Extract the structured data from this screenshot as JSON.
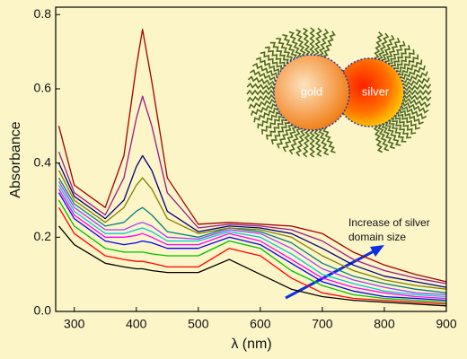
{
  "chart_data": {
    "type": "line",
    "xlabel": "λ (nm)",
    "ylabel": "Absorbance",
    "annotation": [
      "Increase of silver",
      "domain size"
    ],
    "inset_labels": [
      "gold",
      "silver"
    ],
    "xlim": [
      270,
      900
    ],
    "ylim": [
      0,
      0.82
    ],
    "xticks": [
      300,
      400,
      500,
      600,
      700,
      800,
      900
    ],
    "yticks": [
      {
        "value": 0,
        "label": "0.0"
      },
      0.2,
      0.4,
      0.6,
      0.8
    ],
    "x": [
      275,
      300,
      350,
      380,
      400,
      410,
      425,
      450,
      500,
      550,
      600,
      650,
      700,
      750,
      800,
      850,
      900
    ],
    "series": [
      {
        "color": "#000000",
        "values": [
          0.23,
          0.18,
          0.13,
          0.12,
          0.115,
          0.115,
          0.11,
          0.105,
          0.105,
          0.14,
          0.1,
          0.06,
          0.04,
          0.03,
          0.025,
          0.02,
          0.015
        ]
      },
      {
        "color": "#ff0000",
        "values": [
          0.28,
          0.21,
          0.15,
          0.14,
          0.135,
          0.135,
          0.13,
          0.12,
          0.12,
          0.17,
          0.15,
          0.09,
          0.05,
          0.035,
          0.03,
          0.025,
          0.02
        ]
      },
      {
        "color": "#00c000",
        "values": [
          0.3,
          0.23,
          0.17,
          0.16,
          0.16,
          0.16,
          0.155,
          0.15,
          0.15,
          0.19,
          0.17,
          0.11,
          0.07,
          0.045,
          0.035,
          0.03,
          0.025
        ]
      },
      {
        "color": "#0000ff",
        "values": [
          0.32,
          0.25,
          0.19,
          0.18,
          0.185,
          0.19,
          0.185,
          0.17,
          0.17,
          0.2,
          0.18,
          0.13,
          0.08,
          0.055,
          0.04,
          0.035,
          0.03
        ]
      },
      {
        "color": "#ff00ff",
        "values": [
          0.33,
          0.26,
          0.2,
          0.2,
          0.205,
          0.21,
          0.2,
          0.18,
          0.18,
          0.21,
          0.19,
          0.14,
          0.09,
          0.065,
          0.05,
          0.04,
          0.035
        ]
      },
      {
        "color": "#00c8e0",
        "values": [
          0.34,
          0.27,
          0.21,
          0.21,
          0.22,
          0.225,
          0.215,
          0.19,
          0.19,
          0.215,
          0.2,
          0.155,
          0.1,
          0.075,
          0.055,
          0.045,
          0.04
        ]
      },
      {
        "color": "#a040ff",
        "values": [
          0.35,
          0.28,
          0.22,
          0.22,
          0.235,
          0.24,
          0.23,
          0.2,
          0.195,
          0.22,
          0.21,
          0.17,
          0.115,
          0.085,
          0.065,
          0.05,
          0.045
        ]
      },
      {
        "color": "#008080",
        "values": [
          0.36,
          0.29,
          0.23,
          0.24,
          0.27,
          0.28,
          0.26,
          0.215,
          0.2,
          0.225,
          0.215,
          0.185,
          0.13,
          0.095,
          0.075,
          0.06,
          0.05
        ]
      },
      {
        "color": "#808000",
        "values": [
          0.38,
          0.3,
          0.24,
          0.28,
          0.34,
          0.36,
          0.33,
          0.25,
          0.21,
          0.225,
          0.22,
          0.2,
          0.15,
          0.11,
          0.085,
          0.07,
          0.06
        ]
      },
      {
        "color": "#000080",
        "values": [
          0.4,
          0.31,
          0.25,
          0.3,
          0.39,
          0.42,
          0.38,
          0.27,
          0.215,
          0.23,
          0.225,
          0.21,
          0.17,
          0.125,
          0.095,
          0.08,
          0.065
        ]
      },
      {
        "color": "#9a1a8a",
        "values": [
          0.43,
          0.32,
          0.26,
          0.36,
          0.52,
          0.58,
          0.5,
          0.32,
          0.225,
          0.235,
          0.23,
          0.22,
          0.19,
          0.14,
          0.11,
          0.09,
          0.075
        ]
      },
      {
        "color": "#a00000",
        "values": [
          0.5,
          0.34,
          0.28,
          0.42,
          0.66,
          0.76,
          0.62,
          0.36,
          0.235,
          0.24,
          0.235,
          0.23,
          0.21,
          0.16,
          0.125,
          0.1,
          0.08
        ]
      }
    ]
  }
}
